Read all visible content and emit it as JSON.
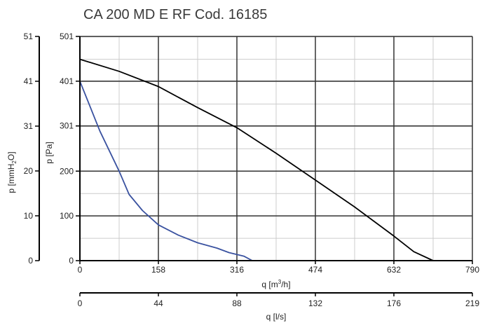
{
  "chart_data": {
    "type": "line",
    "title": "CA 200 MD E RF Cod. 16185",
    "x_axis_primary": {
      "label_base": "q [m",
      "label_sup": "3",
      "label_tail": "/h]",
      "range": [
        0,
        790
      ],
      "ticks": [
        "0",
        "158",
        "316",
        "474",
        "632",
        "790"
      ],
      "minor_step": 79
    },
    "x_axis_secondary": {
      "label": "q [l/s]",
      "ticks": [
        "0",
        "44",
        "88",
        "132",
        "176",
        "219"
      ]
    },
    "y_axis_primary": {
      "label": "p [Pa]",
      "range": [
        0,
        501
      ],
      "ticks": [
        "0",
        "100",
        "200",
        "301",
        "401",
        "501"
      ],
      "minor_step": 50
    },
    "y_axis_secondary": {
      "label_base": "p [mmH",
      "label_sub": "2",
      "label_tail": "O]",
      "ticks": [
        "0",
        "10",
        "20",
        "31",
        "41",
        "51"
      ]
    },
    "grid": true,
    "series": [
      {
        "color": "#000000",
        "points": [
          [
            0,
            450
          ],
          [
            79,
            423
          ],
          [
            158,
            389
          ],
          [
            237,
            342
          ],
          [
            316,
            297
          ],
          [
            395,
            240
          ],
          [
            474,
            180
          ],
          [
            553,
            120
          ],
          [
            632,
            55
          ],
          [
            672,
            20
          ],
          [
            711,
            0
          ]
        ]
      },
      {
        "color": "#3a52a0",
        "points": [
          [
            0,
            401
          ],
          [
            40,
            290
          ],
          [
            79,
            200
          ],
          [
            99,
            148
          ],
          [
            126,
            112
          ],
          [
            158,
            80
          ],
          [
            198,
            57
          ],
          [
            237,
            40
          ],
          [
            276,
            28
          ],
          [
            300,
            18
          ],
          [
            330,
            10
          ],
          [
            347,
            0
          ]
        ]
      }
    ]
  }
}
